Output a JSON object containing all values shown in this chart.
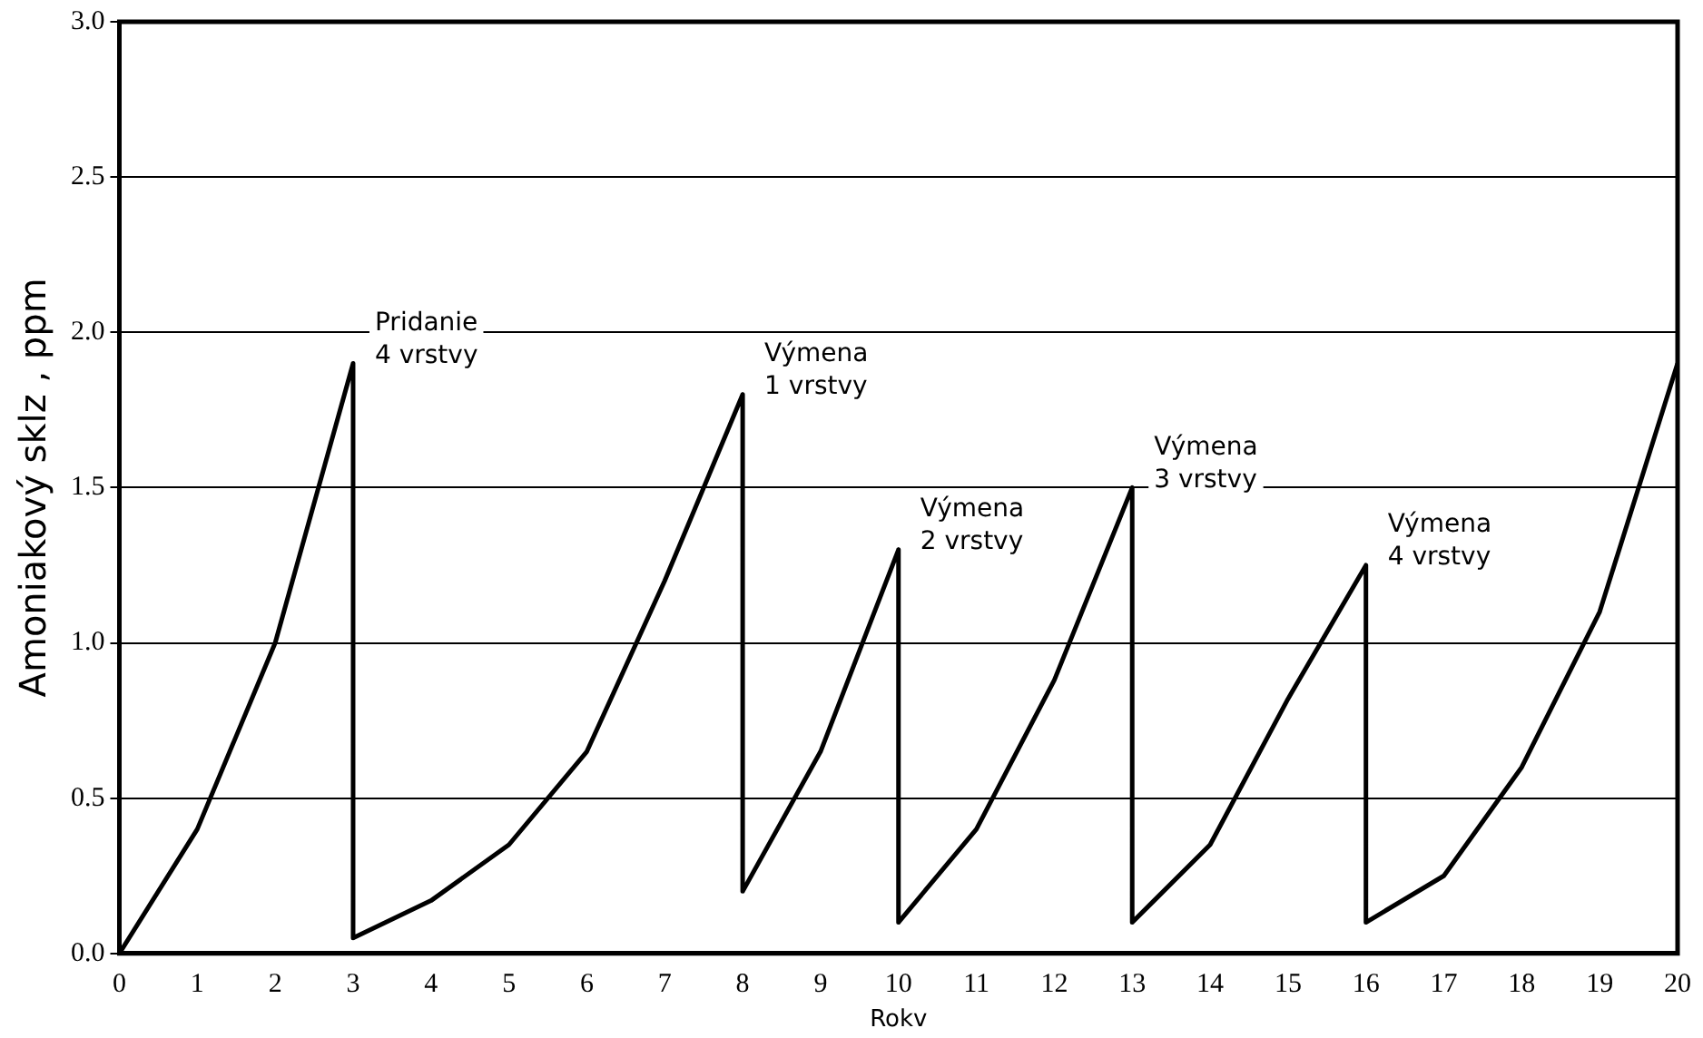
{
  "chart_data": {
    "type": "line",
    "xlabel": "Rokv",
    "ylabel": "Amoniakový sklz , ppm",
    "series": [
      {
        "color": "#000000",
        "x": [
          0,
          1,
          2,
          3,
          3,
          4,
          5,
          6,
          7,
          8,
          8,
          9,
          10,
          10,
          11,
          12,
          13,
          13,
          14,
          15,
          16,
          16,
          17,
          18,
          19,
          20
        ],
        "values": [
          0,
          0.4,
          1.0,
          1.9,
          0.05,
          0.17,
          0.35,
          0.65,
          1.2,
          1.8,
          0.2,
          0.65,
          1.3,
          0.1,
          0.4,
          0.88,
          1.5,
          0.1,
          0.35,
          0.82,
          1.25,
          0.1,
          0.25,
          0.6,
          1.1,
          1.9
        ]
      }
    ],
    "xlim": [
      0,
      20
    ],
    "xticks": [
      0,
      1,
      2,
      3,
      4,
      5,
      6,
      7,
      8,
      9,
      10,
      11,
      12,
      13,
      14,
      15,
      16,
      17,
      18,
      19,
      20
    ],
    "ylim": [
      0,
      3
    ],
    "yticks": [
      {
        "value": 0,
        "label": "0.0"
      },
      {
        "value": 0.5,
        "label": "0.5"
      },
      {
        "value": 1,
        "label": "1.0"
      },
      {
        "value": 1.5,
        "label": "1.5"
      },
      {
        "value": 2,
        "label": "2.0"
      },
      {
        "value": 2.5,
        "label": "2.5"
      },
      {
        "value": 3,
        "label": "3.0"
      }
    ],
    "grid": "y",
    "legend": false,
    "marker": "none",
    "line_style": "solid",
    "annotations": [
      {
        "text": "Pridanie\n4 vrstvy",
        "x": 3,
        "y": 1.9
      },
      {
        "text": "Výmena\n1 vrstvy",
        "x": 8,
        "y": 1.8
      },
      {
        "text": "Výmena\n2 vrstvy",
        "x": 10,
        "y": 1.3
      },
      {
        "text": "Výmena\n3 vrstvy",
        "x": 13,
        "y": 1.5
      },
      {
        "text": "Výmena\n4 vrstvy",
        "x": 16,
        "y": 1.25
      }
    ]
  }
}
